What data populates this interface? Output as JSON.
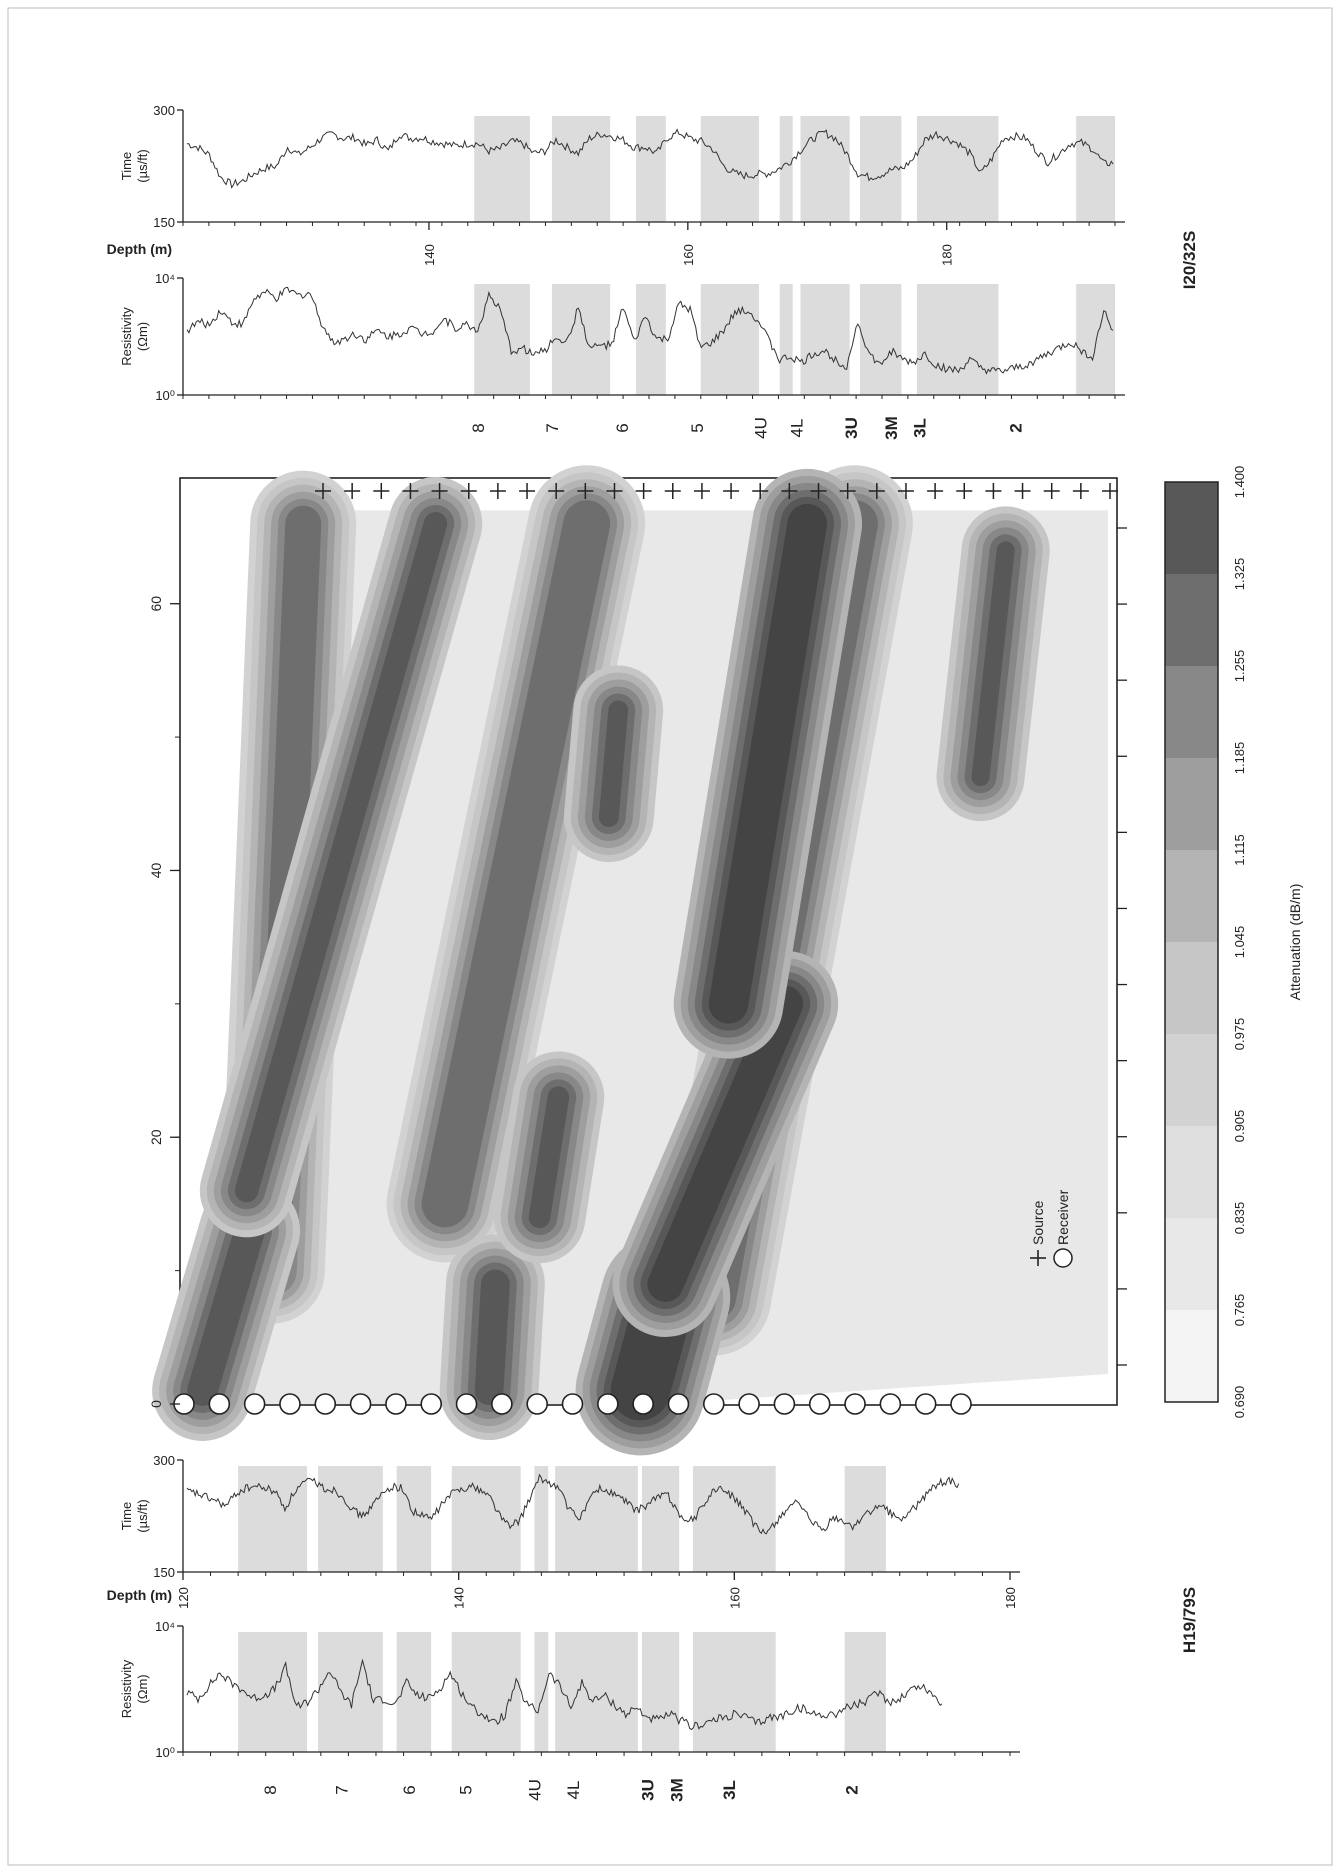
{
  "colors": {
    "background": "#ffffff",
    "band_fill": "#dcdcdc",
    "log_line": "#333333",
    "axis": "#222222",
    "attenuation_scale": [
      "#f4f4f4",
      "#e8e8e8",
      "#dedede",
      "#d2d2d2",
      "#c6c6c6",
      "#b4b4b4",
      "#9e9e9e",
      "#888888",
      "#6e6e6e",
      "#585858",
      "#444444"
    ]
  },
  "chart_data": [
    {
      "id": "top_time_log",
      "type": "line",
      "well": "I20/32S",
      "ylabel": "Time (µs/ft)",
      "ylim": [
        150,
        300
      ],
      "yticks": [
        "300",
        "150"
      ],
      "xlabel": "Depth (m)",
      "xlim": [
        121,
        193
      ],
      "xticks": [
        "140",
        "160",
        "180"
      ],
      "y": [
        255,
        250,
        240,
        210,
        200,
        205,
        215,
        222,
        225,
        250,
        240,
        250,
        262,
        268,
        262,
        263,
        253,
        260,
        245,
        268,
        262,
        263,
        258,
        255,
        252,
        255,
        255,
        245,
        248,
        258,
        255,
        242,
        245,
        260,
        250,
        242,
        262,
        268,
        265,
        260,
        250,
        250,
        242,
        263,
        270,
        262,
        258,
        248,
        225,
        215,
        212,
        214,
        215,
        222,
        232,
        248,
        262,
        270,
        262,
        242,
        215,
        210,
        213,
        220,
        222,
        235,
        260,
        268,
        262,
        255,
        242,
        215,
        235,
        262,
        265,
        262,
        245,
        230,
        242,
        255,
        256,
        248,
        228,
        230
      ],
      "bands_depth": [
        [
          143.5,
          147.8
        ],
        [
          149.5,
          154
        ],
        [
          156,
          158.3
        ],
        [
          161,
          165.5
        ],
        [
          167.1,
          168.1
        ],
        [
          168.7,
          172.5
        ],
        [
          173.3,
          176.5
        ],
        [
          177.7,
          184
        ],
        [
          190,
          193.5
        ]
      ]
    },
    {
      "id": "top_resistivity_log",
      "type": "line",
      "well": "I20/32S",
      "ylabel": "Resistivity (Ωm)",
      "ylim": [
        0,
        4
      ],
      "yticks": [
        "10⁴",
        "10⁰"
      ],
      "log_scale": true,
      "y": [
        2.2,
        2.5,
        2.4,
        2.9,
        2.5,
        2.4,
        3.3,
        3.5,
        3.3,
        3.6,
        3.4,
        3.5,
        2.5,
        1.8,
        1.9,
        2.1,
        1.9,
        2.2,
        2.0,
        2.1,
        2.3,
        2.1,
        2.2,
        2.6,
        2.3,
        2.4,
        2.2,
        3.4,
        2.9,
        1.5,
        1.6,
        1.4,
        1.5,
        2.0,
        1.8,
        3.0,
        1.6,
        1.7,
        1.7,
        3.0,
        1.8,
        2.7,
        1.9,
        1.9,
        3.1,
        2.9,
        1.6,
        1.8,
        2.2,
        2.8,
        2.9,
        2.6,
        1.9,
        1.2,
        1.3,
        1.1,
        1.4,
        1.5,
        1.2,
        1.0,
        2.5,
        1.4,
        1.0,
        1.5,
        1.2,
        1.1,
        1.4,
        1.0,
        0.9,
        0.8,
        1.2,
        0.9,
        0.8,
        0.8,
        0.9,
        1.0,
        1.2,
        1.4,
        1.6,
        1.8,
        1.5,
        1.3,
        2.9,
        2.0
      ]
    },
    {
      "id": "top_units",
      "type": "table",
      "units": [
        "8",
        "7",
        "6",
        "5",
        "4U",
        "4L",
        "3U",
        "3M",
        "3L",
        "2"
      ],
      "bold": [
        false,
        false,
        false,
        false,
        false,
        false,
        true,
        true,
        true,
        true
      ],
      "depths": [
        143.8,
        149.5,
        154.9,
        160.7,
        165.6,
        168.4,
        172.6,
        175.7,
        177.9,
        185.3
      ]
    },
    {
      "id": "attenuation_tomogram",
      "type": "heatmap",
      "xlim": [
        0,
        68
      ],
      "xticks": [
        "0",
        "20",
        "40",
        "60"
      ],
      "num_sources": 28,
      "num_receivers": 23,
      "legend_items": [
        "Source",
        "Receiver"
      ],
      "features": [
        {
          "level": 9,
          "from": [
            0.3,
            1
          ],
          "to": [
            1.8,
            13
          ],
          "width": 1.7
        },
        {
          "level": 9,
          "from": [
            1.7,
            16
          ],
          "to": [
            7.7,
            66
          ],
          "width": 1.3
        },
        {
          "level": 9,
          "from": [
            9.4,
            1
          ],
          "to": [
            9.6,
            9
          ],
          "width": 1.6
        },
        {
          "level": 9,
          "from": [
            11.0,
            14
          ],
          "to": [
            11.6,
            23
          ],
          "width": 1.2
        },
        {
          "level": 9,
          "from": [
            13.2,
            44
          ],
          "to": [
            13.5,
            52
          ],
          "width": 1.1
        },
        {
          "level": 10,
          "from": [
            14.2,
            1
          ],
          "to": [
            15.0,
            8
          ],
          "width": 3.3
        },
        {
          "level": 10,
          "from": [
            15.0,
            9
          ],
          "to": [
            18.8,
            30
          ],
          "width": 2.0
        },
        {
          "level": 10,
          "from": [
            17.0,
            30
          ],
          "to": [
            19.5,
            66
          ],
          "width": 2.2
        },
        {
          "level": 9,
          "from": [
            25.0,
            47
          ],
          "to": [
            25.8,
            64
          ],
          "width": 1.0
        },
        {
          "level": 8,
          "from": [
            2.5,
            10
          ],
          "to": [
            3.5,
            66
          ],
          "width": 2.0
        },
        {
          "level": 8,
          "from": [
            8.0,
            15
          ],
          "to": [
            12.5,
            66
          ],
          "width": 2.6
        },
        {
          "level": 8,
          "from": [
            16.5,
            8
          ],
          "to": [
            21.0,
            66
          ],
          "width": 2.6
        }
      ]
    },
    {
      "id": "attenuation_colorbar",
      "type": "bar",
      "title": "Attenuation (dB/m)",
      "ticks": [
        "0.690",
        "0.765",
        "0.835",
        "0.905",
        "0.975",
        "1.045",
        "1.115",
        "1.185",
        "1.255",
        "1.325",
        "1.400"
      ]
    },
    {
      "id": "bottom_time_log",
      "type": "line",
      "well": "H19/79S",
      "ylabel": "Time (µs/ft)",
      "ylim": [
        150,
        300
      ],
      "yticks": [
        "300",
        "150"
      ],
      "xlabel": "Depth (m)",
      "xlim": [
        120,
        180
      ],
      "xticks": [
        "120",
        "140",
        "160",
        "180"
      ],
      "y": [
        258,
        255,
        250,
        245,
        238,
        255,
        262,
        265,
        262,
        258,
        235,
        258,
        270,
        272,
        262,
        260,
        250,
        232,
        225,
        240,
        255,
        265,
        262,
        232,
        225,
        222,
        240,
        255,
        262,
        265,
        260,
        250,
        225,
        210,
        220,
        248,
        275,
        270,
        262,
        235,
        220,
        245,
        262,
        258,
        252,
        242,
        232,
        240,
        250,
        255,
        235,
        215,
        225,
        245,
        262,
        258,
        248,
        232,
        212,
        200,
        215,
        230,
        245,
        230,
        215,
        205,
        222,
        218,
        210,
        225,
        232,
        238,
        228,
        220,
        232,
        245,
        262,
        270,
        272,
        264
      ],
      "bands_depth": [
        [
          124,
          129
        ],
        [
          129.8,
          134.5
        ],
        [
          135.5,
          138
        ],
        [
          139.5,
          144.5
        ],
        [
          145.5,
          146.5
        ],
        [
          147,
          153
        ],
        [
          153.3,
          156
        ],
        [
          157,
          163
        ],
        [
          168,
          171
        ]
      ]
    },
    {
      "id": "bottom_resistivity_log",
      "type": "line",
      "well": "H19/79S",
      "ylabel": "Resistivity (Ωm)",
      "ylim": [
        0,
        4
      ],
      "yticks": [
        "10⁴",
        "10⁰"
      ],
      "log_scale": true,
      "y": [
        1.9,
        1.7,
        2.1,
        2.5,
        2.2,
        2.0,
        1.7,
        1.8,
        2.0,
        2.7,
        1.4,
        1.6,
        2.0,
        2.6,
        1.9,
        1.5,
        2.9,
        1.6,
        1.7,
        1.5,
        2.2,
        1.8,
        1.7,
        2.0,
        2.5,
        1.9,
        1.4,
        1.2,
        0.9,
        1.2,
        2.2,
        1.5,
        1.3,
        2.5,
        2.1,
        1.4,
        2.2,
        1.6,
        1.8,
        1.5,
        1.2,
        1.4,
        1.1,
        1.0,
        1.2,
        1.0,
        0.8,
        0.9,
        1.0,
        1.1,
        1.2,
        1.1,
        0.9,
        1.1,
        1.1,
        1.3,
        1.4,
        1.2,
        1.2,
        1.2,
        1.4,
        1.5,
        1.6,
        1.9,
        1.6,
        1.7,
        2.0,
        2.1,
        1.8,
        1.5
      ]
    },
    {
      "id": "bottom_units",
      "type": "table",
      "units": [
        "8",
        "7",
        "6",
        "5",
        "4U",
        "4L",
        "3U",
        "3M",
        "3L",
        "2"
      ],
      "bold": [
        false,
        false,
        false,
        false,
        false,
        false,
        true,
        true,
        true,
        true
      ],
      "depths": [
        126.3,
        131.5,
        136.4,
        140.5,
        145.5,
        148.3,
        153.7,
        155.8,
        159.6,
        168.5
      ]
    }
  ],
  "labels": {
    "top_well": "I20/32S",
    "bottom_well": "H19/79S",
    "time_label": [
      "Time",
      "(µs/ft)"
    ],
    "res_label": [
      "Resistivity",
      "(Ωm)"
    ],
    "depth_label": "Depth (m)",
    "source": "Source",
    "receiver": "Receiver",
    "attenuation": "Attenuation (dB/m)"
  }
}
